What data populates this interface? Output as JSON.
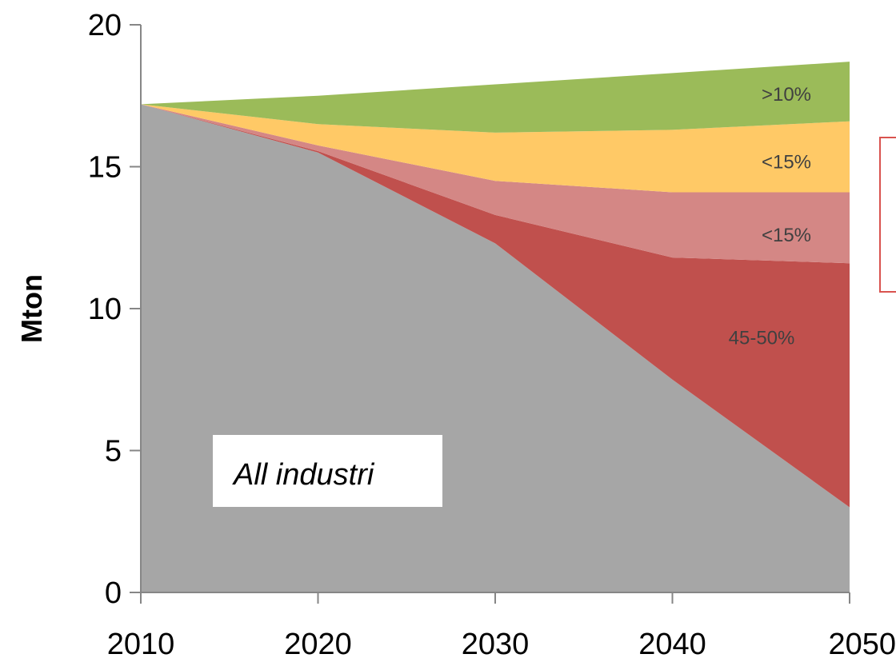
{
  "chart_data": {
    "type": "area",
    "stacked": true,
    "x": [
      2010,
      2020,
      2030,
      2040,
      2050
    ],
    "xlim": [
      2010,
      2050
    ],
    "ylim": [
      0,
      20
    ],
    "xticks": [
      "2010",
      "2020",
      "2030",
      "2040",
      "2050"
    ],
    "yticks": [
      "0",
      "5",
      "10",
      "15",
      "20"
    ],
    "ylabel": "Mton",
    "xlabel": "",
    "title": "",
    "grid": false,
    "series": [
      {
        "label": "",
        "color": "#A6A6A6",
        "values": [
          17.2,
          15.5,
          12.3,
          7.5,
          3.0
        ]
      },
      {
        "label": "45-50%",
        "color": "#C0504D",
        "values": [
          0.0,
          0.05,
          1.0,
          4.3,
          8.6
        ]
      },
      {
        "label": "<15%",
        "color": "#D48785",
        "values": [
          0.0,
          0.2,
          1.2,
          2.3,
          2.5
        ]
      },
      {
        "label": "<15%",
        "color": "#FFC966",
        "values": [
          0.0,
          0.75,
          1.7,
          2.2,
          2.5
        ]
      },
      {
        "label": ">10%",
        "color": "#9BBB59",
        "values": [
          0.0,
          1.0,
          1.7,
          2.0,
          2.1
        ]
      }
    ],
    "annotations": [
      {
        "text": "All industri",
        "style": "italic-boxed"
      }
    ]
  }
}
